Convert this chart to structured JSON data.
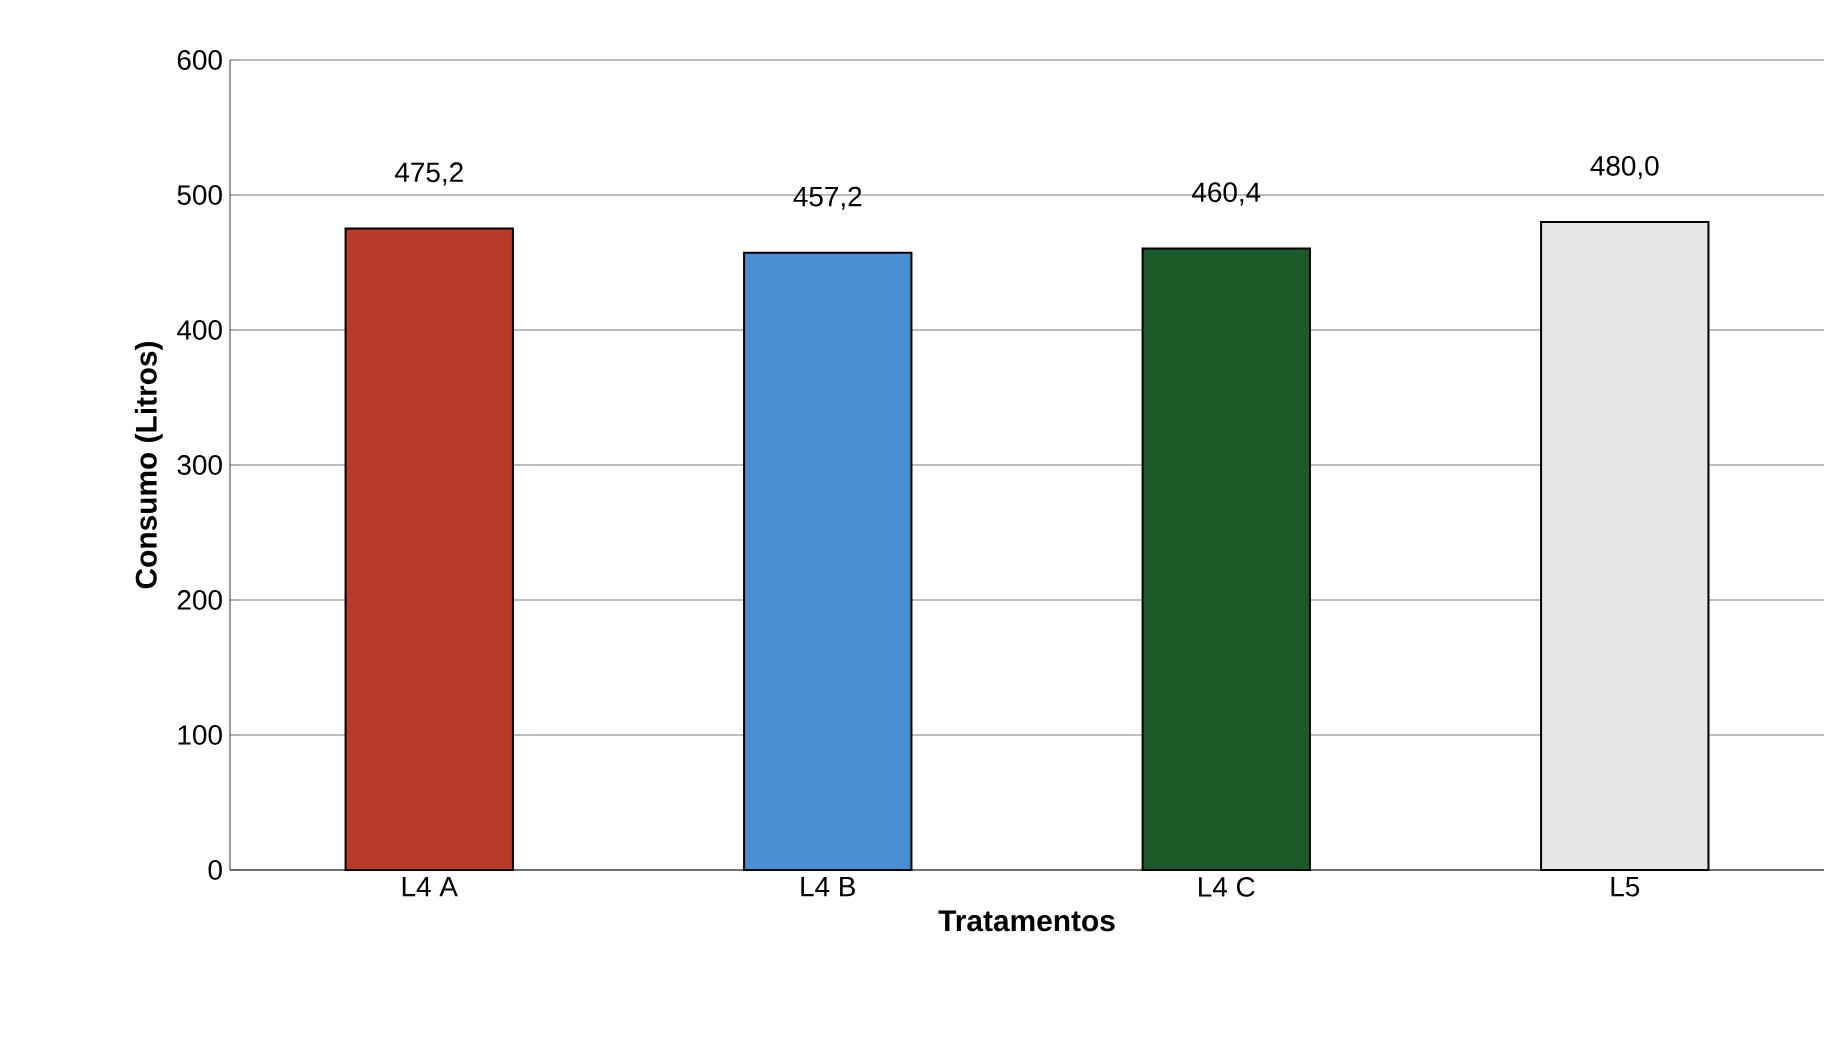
{
  "chart_data": {
    "type": "bar",
    "xlabel": "Tratamentos",
    "ylabel": "Consumo (Litros)",
    "categories": [
      "L4 A",
      "L4 B",
      "L4 C",
      "L5"
    ],
    "values": [
      475.2,
      457.2,
      460.4,
      480.0
    ],
    "colors": [
      "#b83a2a",
      "#4a8fd4",
      "#1d5a2a",
      "#e6e6e6"
    ],
    "value_labels": [
      "475,2",
      "457,2",
      "460,4",
      "480,0"
    ],
    "ylim": [
      0,
      600
    ],
    "yticks": [
      0,
      100,
      200,
      300,
      400,
      500,
      600
    ],
    "grid": "y"
  }
}
